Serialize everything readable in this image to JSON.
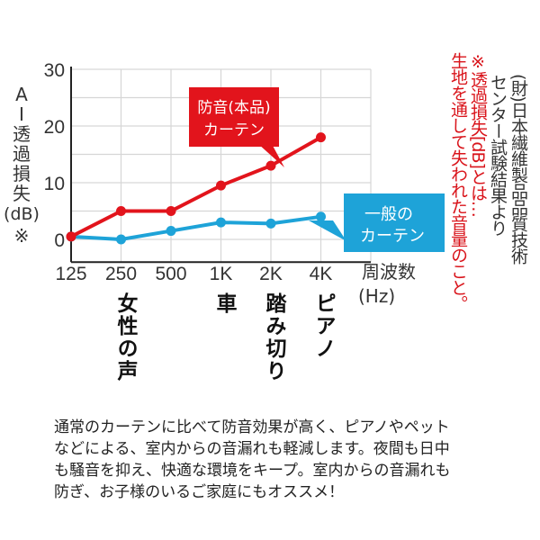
{
  "chart_data": {
    "type": "line",
    "categories": [
      "125",
      "250",
      "500",
      "1K",
      "2K",
      "4K"
    ],
    "ylabel_chars": [
      "A",
      "I",
      "透",
      "過",
      "損",
      "失",
      "(dB)",
      "※"
    ],
    "xlabel": [
      "周波数",
      "(Hz)"
    ],
    "yticks": [
      0,
      10,
      20,
      30
    ],
    "ylim": [
      -4,
      30
    ],
    "grid": true,
    "series": [
      {
        "name": "防音(本品)カーテン",
        "label_lines": [
          "防音(本品)",
          "カーテン"
        ],
        "color": "#e2141c",
        "values": [
          0.5,
          5,
          5,
          9.5,
          13,
          18
        ]
      },
      {
        "name": "一般のカーテン",
        "label_lines": [
          "一般の",
          "カーテン"
        ],
        "color": "#1ea3d8",
        "values": [
          0.5,
          0,
          1.5,
          3,
          2.8,
          4
        ]
      }
    ],
    "annotations": [
      {
        "text": "女性の声",
        "at": "250"
      },
      {
        "text": "車",
        "at": "1K"
      },
      {
        "text": "踏み切り",
        "at": "2K"
      },
      {
        "text": "ピアノ",
        "at": "4K"
      }
    ]
  },
  "source_note": [
    "(財)日本繊維製品品質技術",
    "センター試験結果より"
  ],
  "definition_note": [
    "※透過損失[dB]とは…",
    "生地を通して失われた音量のこと。"
  ],
  "description": [
    "通常のカーテンに比べて防音効果が高く、ピアノやペット",
    "などによる、室内からの音漏れも軽減します。夜間も日中",
    "も騒音を抑え、快適な環境をキープ。室内からの音漏れも",
    "防ぎ、お子様のいるご家庭にもオススメ！"
  ]
}
